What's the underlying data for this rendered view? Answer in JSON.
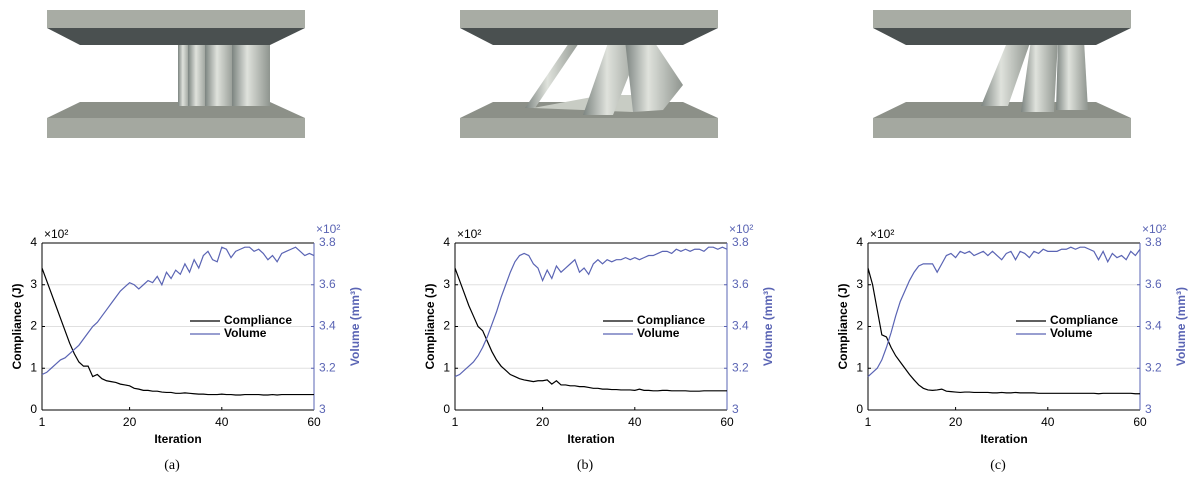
{
  "chart_data": [
    {
      "type": "line",
      "caption": "(a)",
      "xlabel": "Iteration",
      "ylabel": "Compliance (J)",
      "y2label": "Volume (mm³)",
      "y_multiplier": "×10²",
      "y2_multiplier": "×10²",
      "x": [
        1,
        2,
        3,
        4,
        5,
        6,
        7,
        8,
        9,
        10,
        11,
        12,
        13,
        14,
        15,
        16,
        17,
        18,
        19,
        20,
        21,
        22,
        23,
        24,
        25,
        26,
        27,
        28,
        29,
        30,
        31,
        32,
        33,
        34,
        35,
        36,
        37,
        38,
        39,
        40,
        41,
        42,
        43,
        44,
        45,
        46,
        47,
        48,
        49,
        50,
        51,
        52,
        53,
        54,
        55,
        56,
        57,
        58,
        59,
        60
      ],
      "xlim": [
        1,
        60
      ],
      "xticks": [
        1,
        20,
        40,
        60
      ],
      "ylim": [
        0,
        4
      ],
      "yticks": [
        0,
        1,
        2,
        3,
        4
      ],
      "y2lim": [
        3,
        3.8
      ],
      "y2ticks": [
        3,
        3.2,
        3.4,
        3.6,
        3.8
      ],
      "grid": true,
      "legend": "right",
      "series": [
        {
          "name": "Compliance",
          "color": "#000000",
          "values": [
            3.4,
            3.1,
            2.8,
            2.5,
            2.2,
            1.9,
            1.6,
            1.35,
            1.15,
            1.05,
            1.05,
            0.8,
            0.85,
            0.75,
            0.7,
            0.68,
            0.66,
            0.62,
            0.6,
            0.58,
            0.52,
            0.5,
            0.47,
            0.47,
            0.45,
            0.45,
            0.43,
            0.42,
            0.42,
            0.4,
            0.4,
            0.41,
            0.4,
            0.39,
            0.38,
            0.38,
            0.37,
            0.37,
            0.37,
            0.38,
            0.37,
            0.37,
            0.36,
            0.36,
            0.37,
            0.37,
            0.37,
            0.37,
            0.36,
            0.36,
            0.37,
            0.36,
            0.37,
            0.37,
            0.37,
            0.37,
            0.37,
            0.37,
            0.37,
            0.37
          ]
        },
        {
          "name": "Volume",
          "color": "#5a64b4",
          "axis": "y2",
          "values": [
            3.17,
            3.18,
            3.2,
            3.22,
            3.24,
            3.25,
            3.27,
            3.29,
            3.31,
            3.34,
            3.37,
            3.4,
            3.42,
            3.45,
            3.48,
            3.51,
            3.54,
            3.57,
            3.59,
            3.61,
            3.6,
            3.58,
            3.6,
            3.62,
            3.61,
            3.64,
            3.6,
            3.66,
            3.63,
            3.67,
            3.65,
            3.7,
            3.66,
            3.72,
            3.68,
            3.74,
            3.76,
            3.72,
            3.71,
            3.78,
            3.77,
            3.73,
            3.76,
            3.77,
            3.78,
            3.78,
            3.76,
            3.77,
            3.75,
            3.72,
            3.74,
            3.71,
            3.75,
            3.76,
            3.77,
            3.78,
            3.76,
            3.74,
            3.75,
            3.74
          ]
        }
      ]
    },
    {
      "type": "line",
      "caption": "(b)",
      "xlabel": "Iteration",
      "ylabel": "Compliance (J)",
      "y2label": "Volume (mm³)",
      "y_multiplier": "×10²",
      "y2_multiplier": "×10²",
      "x": [
        1,
        2,
        3,
        4,
        5,
        6,
        7,
        8,
        9,
        10,
        11,
        12,
        13,
        14,
        15,
        16,
        17,
        18,
        19,
        20,
        21,
        22,
        23,
        24,
        25,
        26,
        27,
        28,
        29,
        30,
        31,
        32,
        33,
        34,
        35,
        36,
        37,
        38,
        39,
        40,
        41,
        42,
        43,
        44,
        45,
        46,
        47,
        48,
        49,
        50,
        51,
        52,
        53,
        54,
        55,
        56,
        57,
        58,
        59,
        60
      ],
      "xlim": [
        1,
        60
      ],
      "xticks": [
        1,
        20,
        40,
        60
      ],
      "ylim": [
        0,
        4
      ],
      "yticks": [
        0,
        1,
        2,
        3,
        4
      ],
      "y2lim": [
        3,
        3.8
      ],
      "y2ticks": [
        3,
        3.2,
        3.4,
        3.6,
        3.8
      ],
      "grid": true,
      "legend": "right",
      "series": [
        {
          "name": "Compliance",
          "color": "#000000",
          "values": [
            3.4,
            3.1,
            2.8,
            2.5,
            2.25,
            2.0,
            1.9,
            1.65,
            1.4,
            1.2,
            1.05,
            0.95,
            0.85,
            0.8,
            0.75,
            0.72,
            0.7,
            0.68,
            0.7,
            0.7,
            0.72,
            0.62,
            0.7,
            0.6,
            0.6,
            0.58,
            0.58,
            0.56,
            0.56,
            0.54,
            0.52,
            0.52,
            0.5,
            0.5,
            0.49,
            0.49,
            0.48,
            0.48,
            0.48,
            0.47,
            0.5,
            0.47,
            0.47,
            0.46,
            0.46,
            0.47,
            0.47,
            0.46,
            0.46,
            0.46,
            0.46,
            0.45,
            0.45,
            0.45,
            0.46,
            0.46,
            0.46,
            0.46,
            0.46,
            0.46
          ]
        },
        {
          "name": "Volume",
          "color": "#5a64b4",
          "axis": "y2",
          "values": [
            3.16,
            3.17,
            3.19,
            3.21,
            3.23,
            3.26,
            3.3,
            3.35,
            3.41,
            3.47,
            3.54,
            3.6,
            3.66,
            3.71,
            3.74,
            3.75,
            3.74,
            3.7,
            3.68,
            3.62,
            3.67,
            3.63,
            3.69,
            3.66,
            3.68,
            3.7,
            3.72,
            3.66,
            3.68,
            3.65,
            3.7,
            3.72,
            3.7,
            3.72,
            3.71,
            3.72,
            3.72,
            3.73,
            3.72,
            3.73,
            3.72,
            3.73,
            3.74,
            3.74,
            3.75,
            3.76,
            3.76,
            3.75,
            3.77,
            3.76,
            3.77,
            3.76,
            3.77,
            3.77,
            3.76,
            3.78,
            3.78,
            3.77,
            3.78,
            3.77
          ]
        }
      ]
    },
    {
      "type": "line",
      "caption": "(c)",
      "xlabel": "Iteration",
      "ylabel": "Compliance (J)",
      "y2label": "Volume (mm³)",
      "y_multiplier": "×10²",
      "y2_multiplier": "×10²",
      "x": [
        1,
        2,
        3,
        4,
        5,
        6,
        7,
        8,
        9,
        10,
        11,
        12,
        13,
        14,
        15,
        16,
        17,
        18,
        19,
        20,
        21,
        22,
        23,
        24,
        25,
        26,
        27,
        28,
        29,
        30,
        31,
        32,
        33,
        34,
        35,
        36,
        37,
        38,
        39,
        40,
        41,
        42,
        43,
        44,
        45,
        46,
        47,
        48,
        49,
        50,
        51,
        52,
        53,
        54,
        55,
        56,
        57,
        58,
        59,
        60
      ],
      "xlim": [
        1,
        60
      ],
      "xticks": [
        1,
        20,
        40,
        60
      ],
      "ylim": [
        0,
        4
      ],
      "yticks": [
        0,
        1,
        2,
        3,
        4
      ],
      "y2lim": [
        3,
        3.8
      ],
      "y2ticks": [
        3,
        3.2,
        3.4,
        3.6,
        3.8
      ],
      "grid": true,
      "legend": "right",
      "series": [
        {
          "name": "Compliance",
          "color": "#000000",
          "values": [
            3.4,
            3.0,
            2.4,
            1.8,
            1.75,
            1.5,
            1.3,
            1.15,
            1.0,
            0.85,
            0.72,
            0.6,
            0.52,
            0.48,
            0.47,
            0.48,
            0.5,
            0.45,
            0.44,
            0.43,
            0.42,
            0.43,
            0.43,
            0.42,
            0.42,
            0.42,
            0.42,
            0.41,
            0.41,
            0.42,
            0.41,
            0.41,
            0.42,
            0.41,
            0.41,
            0.41,
            0.41,
            0.4,
            0.4,
            0.4,
            0.4,
            0.4,
            0.4,
            0.4,
            0.4,
            0.4,
            0.4,
            0.4,
            0.4,
            0.4,
            0.39,
            0.4,
            0.4,
            0.4,
            0.4,
            0.4,
            0.4,
            0.4,
            0.39,
            0.39
          ]
        },
        {
          "name": "Volume",
          "color": "#5a64b4",
          "axis": "y2",
          "values": [
            3.16,
            3.18,
            3.2,
            3.24,
            3.3,
            3.37,
            3.45,
            3.52,
            3.57,
            3.62,
            3.66,
            3.69,
            3.7,
            3.7,
            3.7,
            3.66,
            3.7,
            3.74,
            3.75,
            3.73,
            3.76,
            3.75,
            3.76,
            3.74,
            3.75,
            3.76,
            3.74,
            3.76,
            3.74,
            3.72,
            3.75,
            3.76,
            3.72,
            3.76,
            3.75,
            3.73,
            3.76,
            3.75,
            3.77,
            3.76,
            3.76,
            3.76,
            3.77,
            3.77,
            3.78,
            3.77,
            3.78,
            3.78,
            3.77,
            3.76,
            3.72,
            3.76,
            3.71,
            3.75,
            3.73,
            3.74,
            3.72,
            3.76,
            3.74,
            3.77
          ]
        }
      ]
    }
  ]
}
